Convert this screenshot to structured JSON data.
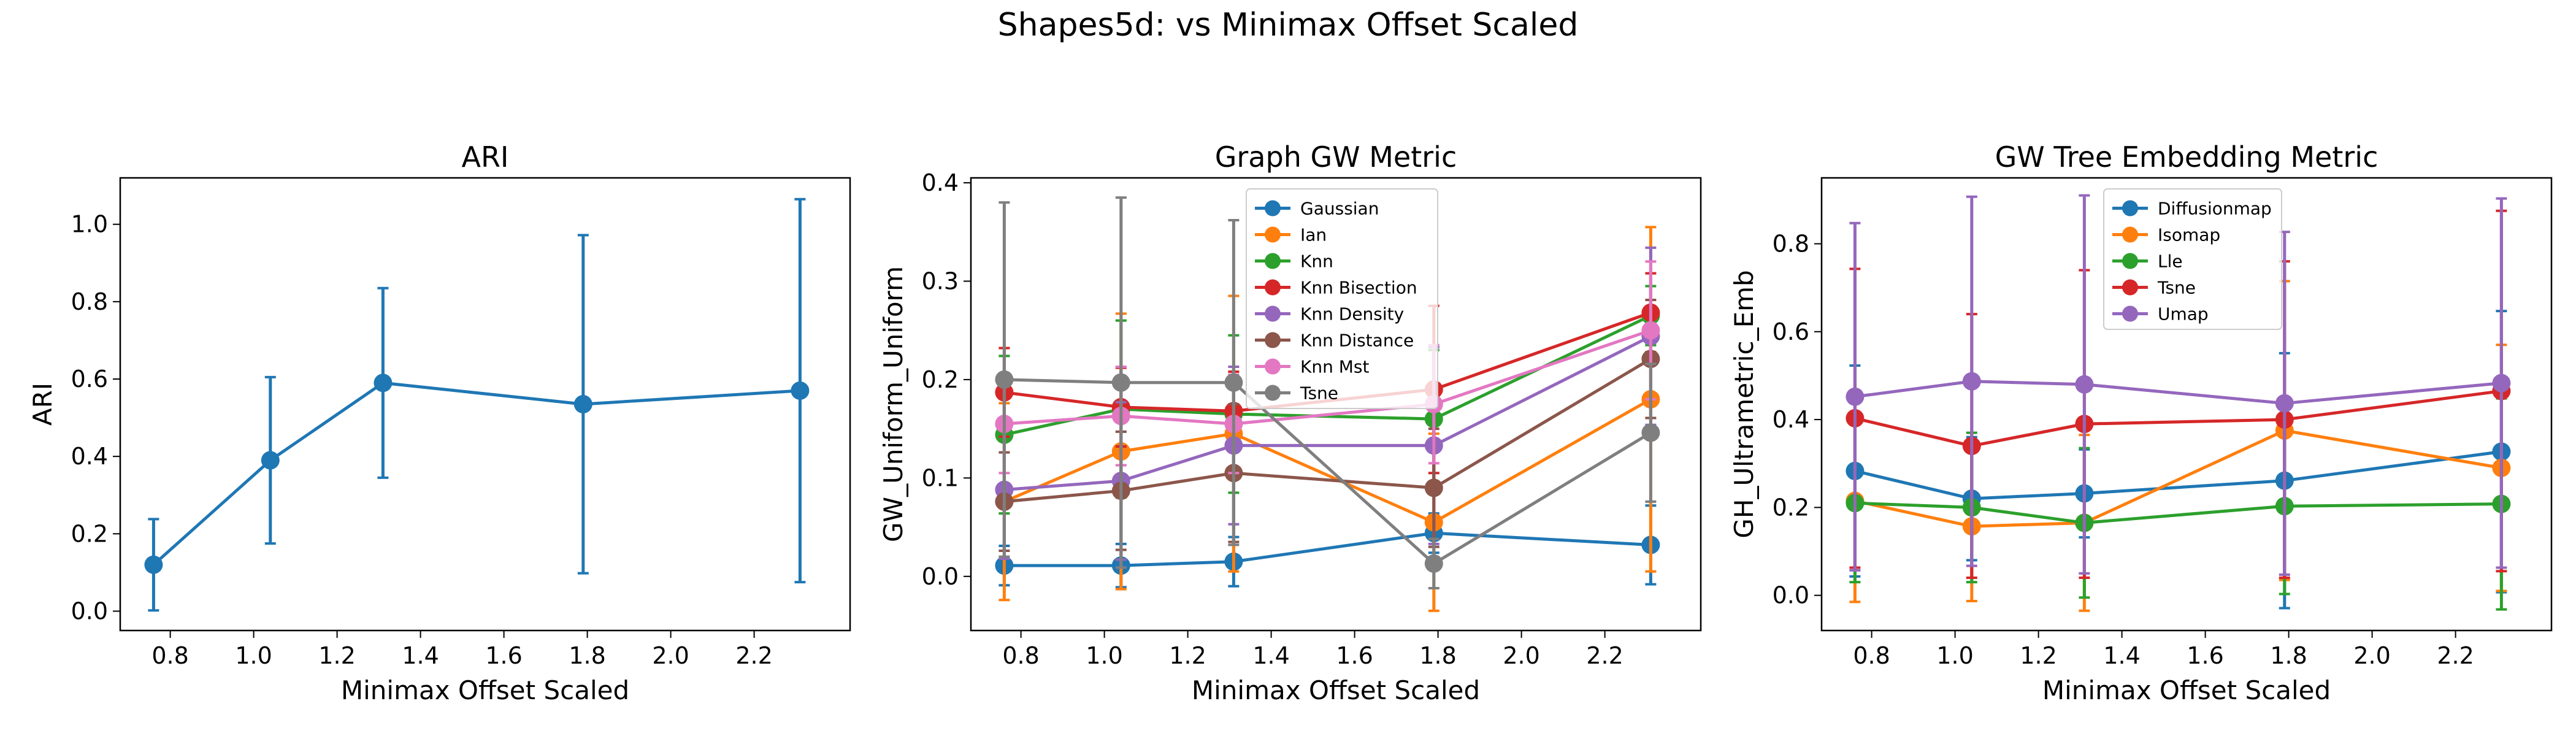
{
  "figure": {
    "suptitle": "Shapes5d: vs Minimax Offset Scaled"
  },
  "chart_data": [
    {
      "type": "line",
      "title": "ARI",
      "xlabel": "Minimax Offset Scaled",
      "ylabel": "ARI",
      "xlim": [
        0.68,
        2.43
      ],
      "ylim": [
        -0.05,
        1.12
      ],
      "xticks": [
        0.8,
        1.0,
        1.2,
        1.4,
        1.6,
        1.8,
        2.0,
        2.2
      ],
      "yticks": [
        0.0,
        0.2,
        0.4,
        0.6,
        0.8,
        1.0
      ],
      "x": [
        0.76,
        1.04,
        1.31,
        1.79,
        2.31
      ],
      "legend": "none",
      "grid": false,
      "series": [
        {
          "name": "",
          "color": "#1f77b4",
          "values": [
            0.12,
            0.39,
            0.59,
            0.535,
            0.57
          ],
          "err": [
            0.118,
            0.215,
            0.245,
            0.437,
            0.495
          ]
        }
      ]
    },
    {
      "type": "line",
      "title": "Graph GW Metric",
      "xlabel": "Minimax Offset Scaled",
      "ylabel": "GW_Uniform_Uniform",
      "xlim": [
        0.68,
        2.43
      ],
      "ylim": [
        -0.055,
        0.405
      ],
      "xticks": [
        0.8,
        1.0,
        1.2,
        1.4,
        1.6,
        1.8,
        2.0,
        2.2
      ],
      "yticks": [
        0.0,
        0.1,
        0.2,
        0.3,
        0.4
      ],
      "x": [
        0.76,
        1.04,
        1.31,
        1.79,
        2.31
      ],
      "legend": "upper center",
      "grid": false,
      "series": [
        {
          "name": "Gaussian",
          "color": "#1f77b4",
          "values": [
            0.011,
            0.011,
            0.015,
            0.044,
            0.032
          ],
          "err": [
            0.02,
            0.022,
            0.025,
            0.02,
            0.04
          ]
        },
        {
          "name": "Ian",
          "color": "#ff7f0e",
          "values": [
            0.076,
            0.127,
            0.145,
            0.055,
            0.18
          ],
          "err": [
            0.1,
            0.14,
            0.14,
            0.09,
            0.175
          ]
        },
        {
          "name": "Knn",
          "color": "#2ca02c",
          "values": [
            0.144,
            0.17,
            0.165,
            0.16,
            0.265
          ],
          "err": [
            0.08,
            0.09,
            0.08,
            0.07,
            0.03
          ]
        },
        {
          "name": "Knn Bisection",
          "color": "#d62728",
          "values": [
            0.187,
            0.172,
            0.168,
            0.19,
            0.268
          ],
          "err": [
            0.045,
            0.04,
            0.04,
            0.085,
            0.04
          ]
        },
        {
          "name": "Knn Density",
          "color": "#9467bd",
          "values": [
            0.088,
            0.097,
            0.133,
            0.133,
            0.244
          ],
          "err": [
            0.07,
            0.08,
            0.08,
            0.1,
            0.09
          ]
        },
        {
          "name": "Knn Distance",
          "color": "#8c564b",
          "values": [
            0.076,
            0.087,
            0.105,
            0.09,
            0.221
          ],
          "err": [
            0.05,
            0.06,
            0.07,
            0.06,
            0.06
          ]
        },
        {
          "name": "Knn Mst",
          "color": "#e377c2",
          "values": [
            0.155,
            0.163,
            0.155,
            0.175,
            0.25
          ],
          "err": [
            0.05,
            0.05,
            0.05,
            0.06,
            0.07
          ]
        },
        {
          "name": "Tsne",
          "color": "#7f7f7f",
          "values": [
            0.2,
            0.197,
            0.197,
            0.013,
            0.146
          ],
          "err": [
            0.18,
            0.188,
            0.165,
            0.025,
            0.07
          ]
        }
      ]
    },
    {
      "type": "line",
      "title": "GW Tree Embedding Metric",
      "xlabel": "Minimax Offset Scaled",
      "ylabel": "GH_Ultrametric_Emb",
      "xlim": [
        0.68,
        2.43
      ],
      "ylim": [
        -0.08,
        0.95
      ],
      "xticks": [
        0.8,
        1.0,
        1.2,
        1.4,
        1.6,
        1.8,
        2.0,
        2.2
      ],
      "yticks": [
        0.0,
        0.2,
        0.4,
        0.6,
        0.8
      ],
      "x": [
        0.76,
        1.04,
        1.31,
        1.79,
        2.31
      ],
      "legend": "upper center",
      "grid": false,
      "series": [
        {
          "name": "Diffusionmap",
          "color": "#1f77b4",
          "values": [
            0.283,
            0.22,
            0.232,
            0.261,
            0.327
          ],
          "err": [
            0.24,
            0.14,
            0.1,
            0.29,
            0.32
          ]
        },
        {
          "name": "Isomap",
          "color": "#ff7f0e",
          "values": [
            0.215,
            0.157,
            0.165,
            0.375,
            0.29
          ],
          "err": [
            0.23,
            0.17,
            0.2,
            0.34,
            0.28
          ]
        },
        {
          "name": "Lle",
          "color": "#2ca02c",
          "values": [
            0.21,
            0.2,
            0.165,
            0.203,
            0.208
          ],
          "err": [
            0.18,
            0.17,
            0.17,
            0.2,
            0.24
          ]
        },
        {
          "name": "Tsne",
          "color": "#d62728",
          "values": [
            0.403,
            0.34,
            0.39,
            0.4,
            0.465
          ],
          "err": [
            0.34,
            0.3,
            0.35,
            0.36,
            0.41
          ]
        },
        {
          "name": "Umap",
          "color": "#9467bd",
          "values": [
            0.452,
            0.487,
            0.48,
            0.437,
            0.483
          ],
          "err": [
            0.395,
            0.42,
            0.43,
            0.39,
            0.42
          ]
        }
      ]
    }
  ]
}
